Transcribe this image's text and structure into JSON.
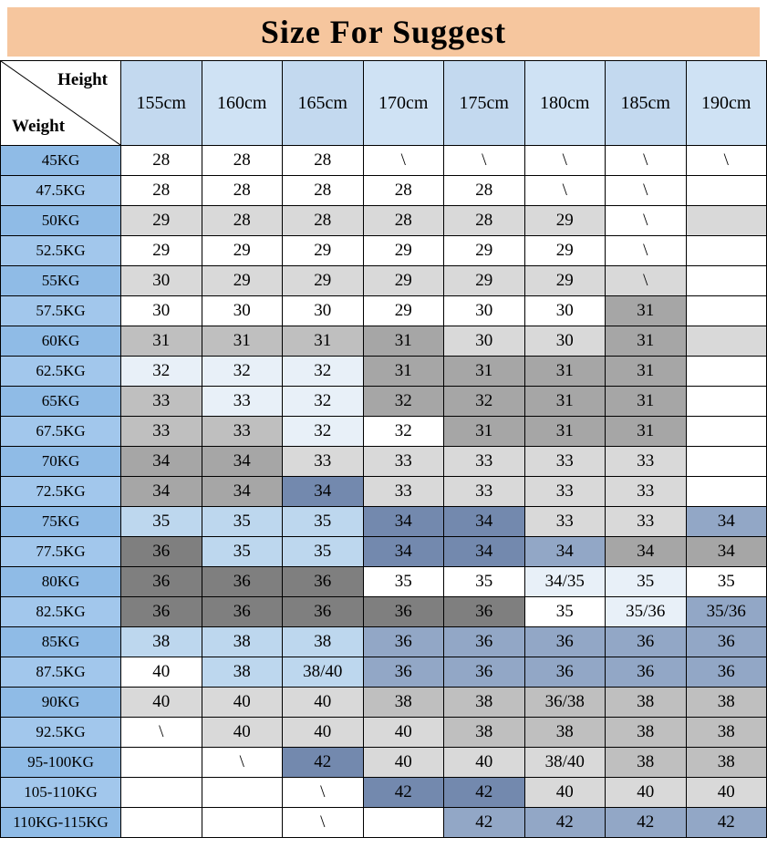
{
  "chart_data": {
    "type": "table",
    "title": "Size For Suggest",
    "col_header": "Height",
    "row_header": "Weight",
    "columns": [
      "155cm",
      "160cm",
      "165cm",
      "170cm",
      "175cm",
      "180cm",
      "185cm",
      "190cm"
    ],
    "rows": [
      {
        "weight": "45KG",
        "values": [
          "28",
          "28",
          "28",
          "\\",
          "\\",
          "\\",
          "\\",
          "\\"
        ],
        "bg": [
          "w",
          "w",
          "w",
          "w",
          "w",
          "w",
          "w",
          "w"
        ]
      },
      {
        "weight": "47.5KG",
        "values": [
          "28",
          "28",
          "28",
          "28",
          "28",
          "\\",
          "\\",
          ""
        ],
        "bg": [
          "w",
          "w",
          "w",
          "w",
          "w",
          "w",
          "w",
          "w"
        ]
      },
      {
        "weight": "50KG",
        "values": [
          "29",
          "28",
          "28",
          "28",
          "28",
          "29",
          "\\",
          ""
        ],
        "bg": [
          "g1",
          "g1",
          "g1",
          "g1",
          "g1",
          "g1",
          "w",
          "g1"
        ]
      },
      {
        "weight": "52.5KG",
        "values": [
          "29",
          "29",
          "29",
          "29",
          "29",
          "29",
          "\\",
          ""
        ],
        "bg": [
          "w",
          "w",
          "w",
          "w",
          "w",
          "w",
          "w",
          "w"
        ]
      },
      {
        "weight": "55KG",
        "values": [
          "30",
          "29",
          "29",
          "29",
          "29",
          "29",
          "\\",
          ""
        ],
        "bg": [
          "g1",
          "g1",
          "g1",
          "g1",
          "g1",
          "g1",
          "g1",
          "w"
        ]
      },
      {
        "weight": "57.5KG",
        "values": [
          "30",
          "30",
          "30",
          "29",
          "30",
          "30",
          "31",
          ""
        ],
        "bg": [
          "w",
          "w",
          "w",
          "w",
          "w",
          "w",
          "g3",
          "w"
        ]
      },
      {
        "weight": "60KG",
        "values": [
          "31",
          "31",
          "31",
          "31",
          "30",
          "30",
          "31",
          ""
        ],
        "bg": [
          "g2",
          "g2",
          "g2",
          "g3",
          "g1",
          "g1",
          "g3",
          "g1"
        ]
      },
      {
        "weight": "62.5KG",
        "values": [
          "32",
          "32",
          "32",
          "31",
          "31",
          "31",
          "31",
          ""
        ],
        "bg": [
          "p",
          "p",
          "p",
          "g3",
          "g3",
          "g3",
          "g3",
          "w"
        ]
      },
      {
        "weight": "65KG",
        "values": [
          "33",
          "33",
          "32",
          "32",
          "32",
          "31",
          "31",
          ""
        ],
        "bg": [
          "g2",
          "p",
          "p",
          "g3",
          "g3",
          "g3",
          "g3",
          "w"
        ]
      },
      {
        "weight": "67.5KG",
        "values": [
          "33",
          "33",
          "32",
          "32",
          "31",
          "31",
          "31",
          ""
        ],
        "bg": [
          "g2",
          "g2",
          "p",
          "w",
          "g3",
          "g3",
          "g3",
          "w"
        ]
      },
      {
        "weight": "70KG",
        "values": [
          "34",
          "34",
          "33",
          "33",
          "33",
          "33",
          "33",
          ""
        ],
        "bg": [
          "g3",
          "g3",
          "g1",
          "g1",
          "g1",
          "g1",
          "g1",
          "w"
        ]
      },
      {
        "weight": "72.5KG",
        "values": [
          "34",
          "34",
          "34",
          "33",
          "33",
          "33",
          "33",
          ""
        ],
        "bg": [
          "g3",
          "g3",
          "b4",
          "g1",
          "g1",
          "g1",
          "g1",
          "w"
        ]
      },
      {
        "weight": "75KG",
        "values": [
          "35",
          "35",
          "35",
          "34",
          "34",
          "33",
          "33",
          "34"
        ],
        "bg": [
          "lb",
          "lb",
          "lb",
          "b4",
          "b4",
          "g1",
          "g1",
          "b3"
        ]
      },
      {
        "weight": "77.5KG",
        "values": [
          "36",
          "35",
          "35",
          "34",
          "34",
          "34",
          "34",
          "34"
        ],
        "bg": [
          "g4",
          "lb",
          "lb",
          "b4",
          "b4",
          "b3",
          "g3",
          "g3"
        ]
      },
      {
        "weight": "80KG",
        "values": [
          "36",
          "36",
          "36",
          "35",
          "35",
          "34/35",
          "35",
          "35"
        ],
        "bg": [
          "g4",
          "g4",
          "g4",
          "w",
          "w",
          "p",
          "p",
          "w"
        ]
      },
      {
        "weight": "82.5KG",
        "values": [
          "36",
          "36",
          "36",
          "36",
          "36",
          "35",
          "35/36",
          "35/36"
        ],
        "bg": [
          "g4",
          "g4",
          "g4",
          "g4",
          "g4",
          "w",
          "p",
          "b3"
        ]
      },
      {
        "weight": "85KG",
        "values": [
          "38",
          "38",
          "38",
          "36",
          "36",
          "36",
          "36",
          "36"
        ],
        "bg": [
          "lb",
          "lb",
          "lb",
          "b3",
          "b3",
          "b3",
          "b3",
          "b3"
        ]
      },
      {
        "weight": "87.5KG",
        "values": [
          "40",
          "38",
          "38/40",
          "36",
          "36",
          "36",
          "36",
          "36"
        ],
        "bg": [
          "w",
          "lb",
          "lb",
          "b3",
          "b3",
          "b3",
          "b3",
          "b3"
        ]
      },
      {
        "weight": "90KG",
        "values": [
          "40",
          "40",
          "40",
          "38",
          "38",
          "36/38",
          "38",
          "38"
        ],
        "bg": [
          "g1",
          "g1",
          "g1",
          "g2",
          "g2",
          "g2",
          "g2",
          "g2"
        ]
      },
      {
        "weight": "92.5KG",
        "values": [
          "\\",
          "40",
          "40",
          "40",
          "38",
          "38",
          "38",
          "38"
        ],
        "bg": [
          "w",
          "g1",
          "g1",
          "g1",
          "g2",
          "g2",
          "g2",
          "g2"
        ]
      },
      {
        "weight": "95-100KG",
        "values": [
          "",
          "\\",
          "42",
          "40",
          "40",
          "38/40",
          "38",
          "38"
        ],
        "bg": [
          "w",
          "w",
          "b4",
          "g1",
          "g1",
          "g1",
          "g2",
          "g2"
        ]
      },
      {
        "weight": "105-110KG",
        "values": [
          "",
          "",
          "\\",
          "42",
          "42",
          "40",
          "40",
          "40"
        ],
        "bg": [
          "w",
          "w",
          "w",
          "b4",
          "b4",
          "g1",
          "g1",
          "g1"
        ]
      },
      {
        "weight": "110KG-115KG",
        "values": [
          "",
          "",
          "\\",
          "",
          "42",
          "42",
          "42",
          "42"
        ],
        "bg": [
          "w",
          "w",
          "w",
          "w",
          "b3",
          "b3",
          "b3",
          "b3"
        ]
      }
    ]
  },
  "colors": {
    "banner_bg": "#F6C69E",
    "header_bg_a": "#C3D9EF",
    "header_bg_b": "#CFE2F4",
    "weight_a": "#8FBBE6",
    "weight_b": "#A2C7EC",
    "border": "#000000",
    "palette": {
      "w": "#FFFFFF",
      "g1": "#D9D9D9",
      "g2": "#BFBFBF",
      "g3": "#A6A6A6",
      "g4": "#7F7F7F",
      "p": "#E8F0F8",
      "lb": "#BDD7EE",
      "b3": "#92A7C6",
      "b4": "#7389AE"
    }
  }
}
